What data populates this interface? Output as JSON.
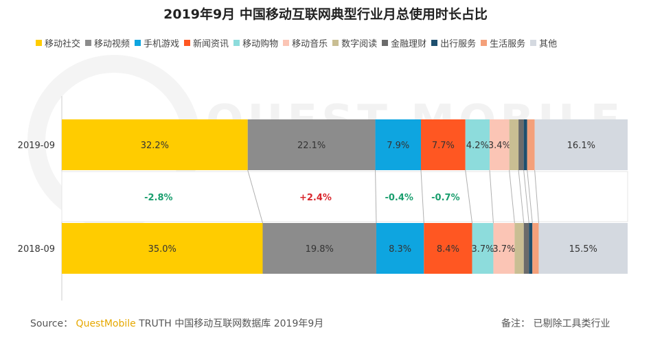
{
  "title": "2019年9月 中国移动互联网典型行业月总使用时长占比",
  "legend": [
    {
      "label": "移动社交",
      "color": "#ffcc00"
    },
    {
      "label": "移动视频",
      "color": "#8c8c8c"
    },
    {
      "label": "手机游戏",
      "color": "#0ea5e0"
    },
    {
      "label": "新闻资讯",
      "color": "#ff5722"
    },
    {
      "label": "移动购物",
      "color": "#8ddcdc"
    },
    {
      "label": "移动音乐",
      "color": "#fbc5b5"
    },
    {
      "label": "数字阅读",
      "color": "#c9be93"
    },
    {
      "label": "金融理财",
      "color": "#6b6b6b"
    },
    {
      "label": "出行服务",
      "color": "#1d4f6e"
    },
    {
      "label": "生活服务",
      "color": "#f4a07a"
    },
    {
      "label": "其他",
      "color": "#d4d9e0"
    }
  ],
  "chart_data": {
    "type": "bar",
    "stacked": "100%",
    "orientation": "horizontal",
    "categories": [
      "2019-09",
      "2018-09"
    ],
    "series": [
      {
        "name": "移动社交",
        "values": [
          32.2,
          35.0
        ],
        "labels": [
          "32.2%",
          "35.0%"
        ]
      },
      {
        "name": "移动视频",
        "values": [
          22.1,
          19.8
        ],
        "labels": [
          "22.1%",
          "19.8%"
        ]
      },
      {
        "name": "手机游戏",
        "values": [
          7.9,
          8.3
        ],
        "labels": [
          "7.9%",
          "8.3%"
        ]
      },
      {
        "name": "新闻资讯",
        "values": [
          7.7,
          8.4
        ],
        "labels": [
          "7.7%",
          "8.4%"
        ]
      },
      {
        "name": "移动购物",
        "values": [
          4.2,
          3.7
        ],
        "labels": [
          "4.2%",
          "3.7%"
        ]
      },
      {
        "name": "移动音乐",
        "values": [
          3.4,
          3.7
        ],
        "labels": [
          "3.4%",
          "3.7%"
        ]
      },
      {
        "name": "数字阅读",
        "values": [
          1.6,
          1.6
        ],
        "labels": [
          "",
          ""
        ]
      },
      {
        "name": "金融理财",
        "values": [
          0.9,
          0.9
        ],
        "labels": [
          "",
          ""
        ]
      },
      {
        "name": "出行服务",
        "values": [
          0.6,
          0.6
        ],
        "labels": [
          "",
          ""
        ]
      },
      {
        "name": "生活服务",
        "values": [
          1.3,
          1.1
        ],
        "labels": [
          "",
          ""
        ]
      },
      {
        "name": "其他",
        "values": [
          16.1,
          15.5
        ],
        "labels": [
          "16.1%",
          "15.5%"
        ]
      }
    ],
    "changes": [
      {
        "series": "移动社交",
        "label": "-2.8%",
        "color": "#1a9e6e"
      },
      {
        "series": "移动视频",
        "label": "+2.4%",
        "color": "#d9262c"
      },
      {
        "series": "手机游戏",
        "label": "-0.4%",
        "color": "#1a9e6e"
      },
      {
        "series": "新闻资讯",
        "label": "-0.7%",
        "color": "#1a9e6e"
      }
    ]
  },
  "footer": {
    "source_prefix": "Source：",
    "brand": "QuestMobile",
    "source_rest": "TRUTH 中国移动互联网数据库 2019年9月",
    "note": "备注：  已剔除工具类行业"
  },
  "watermark": "QUEST MOBILE"
}
